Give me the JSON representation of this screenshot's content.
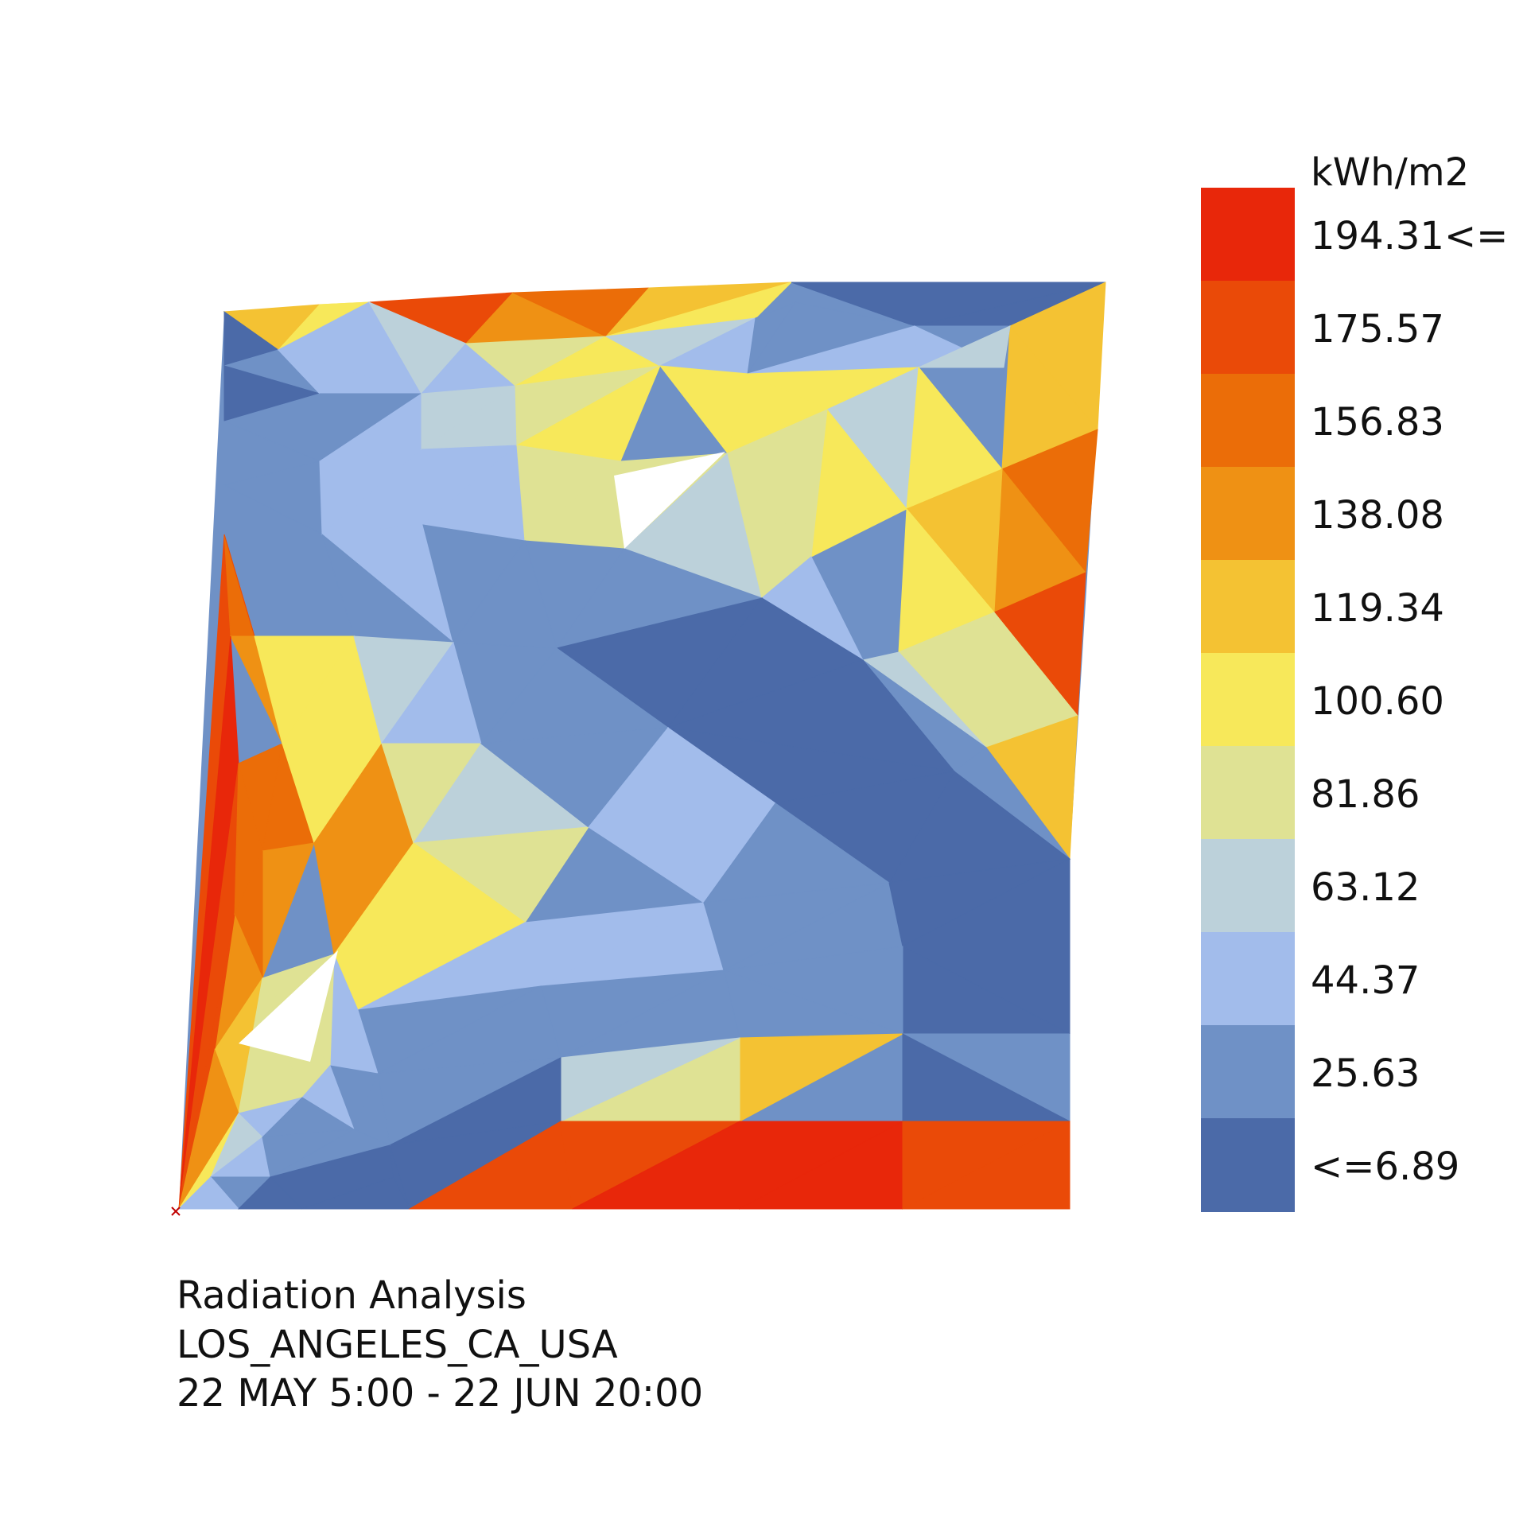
{
  "chart_data": {
    "type": "heatmap",
    "title": "Radiation Analysis",
    "location": "LOS_ANGELES_CA_USA",
    "period": "22 MAY 5:00 - 22 JUN 20:00",
    "unit": "kWh/m2",
    "legend": {
      "placement": "right",
      "bins": [
        {
          "label": "194.31<=",
          "color": "#e8270a"
        },
        {
          "label": "175.57",
          "color": "#ea4a08"
        },
        {
          "label": "156.83",
          "color": "#eb6d08"
        },
        {
          "label": "138.08",
          "color": "#ef9114"
        },
        {
          "label": "119.34",
          "color": "#f4c233"
        },
        {
          "label": "100.60",
          "color": "#f7e85a"
        },
        {
          "label": "81.86",
          "color": "#dfe294"
        },
        {
          "label": "63.12",
          "color": "#bcd1da"
        },
        {
          "label": "44.37",
          "color": "#a2bceb"
        },
        {
          "label": "25.63",
          "color": "#6f91c6"
        },
        {
          "label": "<=6.89",
          "color": "#4b6aa8"
        }
      ]
    },
    "grid": false
  }
}
